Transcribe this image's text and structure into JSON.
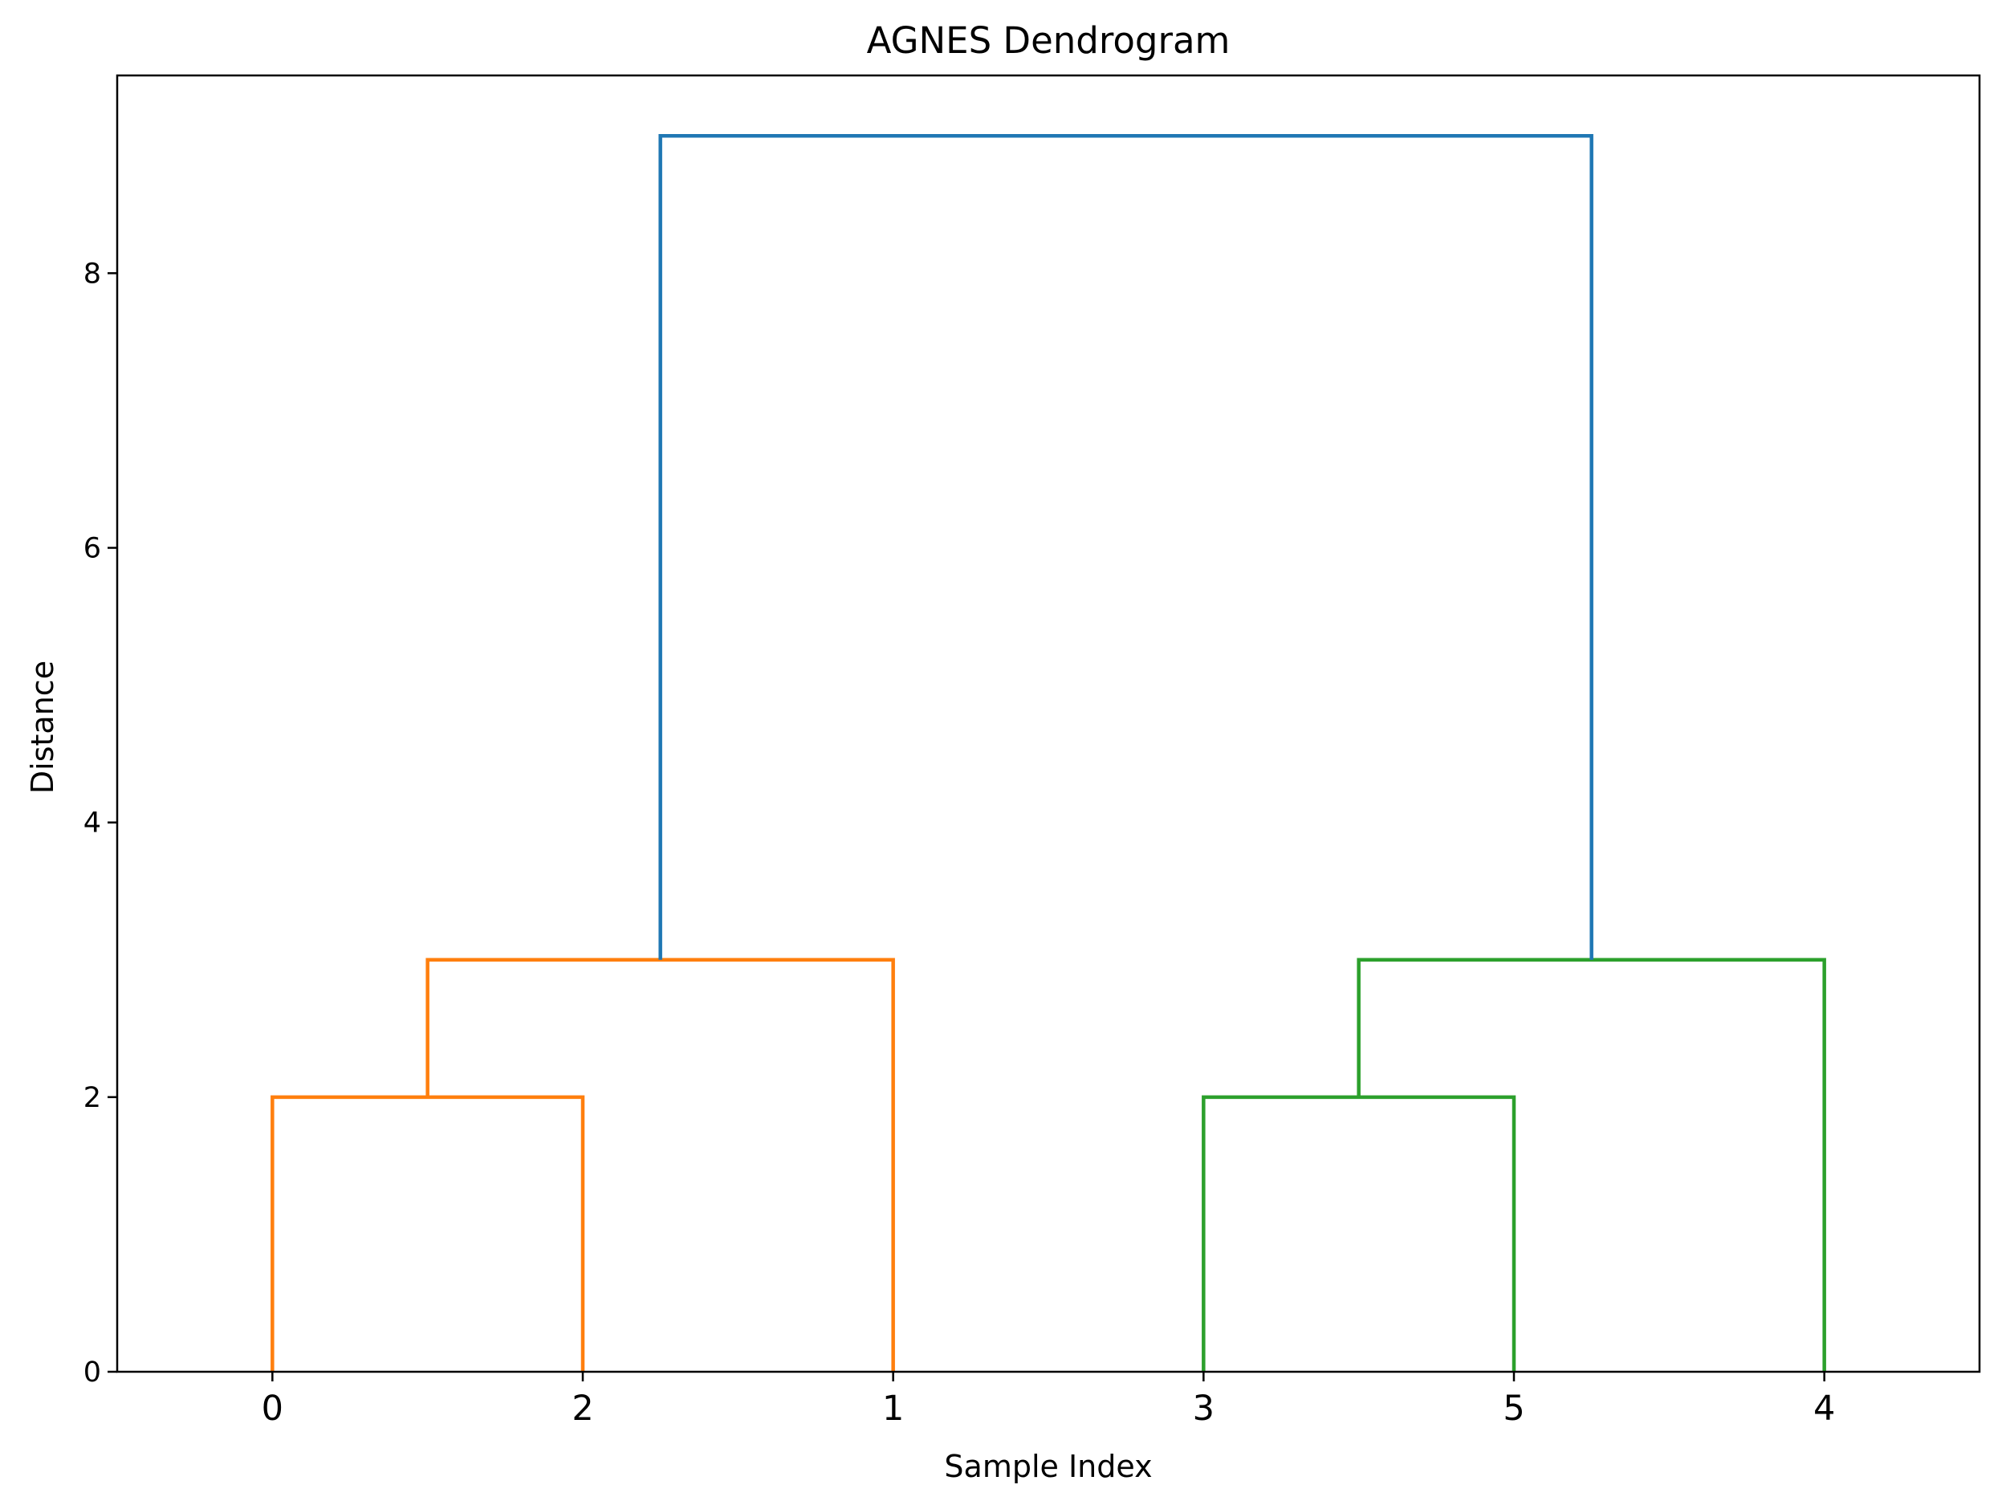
{
  "chart_data": {
    "type": "dendrogram",
    "title": "AGNES Dendrogram",
    "xlabel": "Sample Index",
    "ylabel": "Distance",
    "ylim": [
      0,
      9.44
    ],
    "yticks": [
      0,
      2,
      4,
      6,
      8
    ],
    "leaf_order": [
      "0",
      "2",
      "1",
      "3",
      "5",
      "4"
    ],
    "grid": false,
    "links": [
      {
        "left": "0",
        "right": "2",
        "height": 2,
        "color": "#ff7f0e"
      },
      {
        "left": "3",
        "right": "5",
        "height": 2,
        "color": "#2ca02c"
      },
      {
        "left": "(0,2)",
        "right": "1",
        "height": 3,
        "color": "#ff7f0e"
      },
      {
        "left": "(3,5)",
        "right": "4",
        "height": 3,
        "color": "#2ca02c"
      },
      {
        "left": "(0,2,1)",
        "right": "(3,5,4)",
        "height": 9,
        "color": "#1f77b4"
      }
    ]
  }
}
